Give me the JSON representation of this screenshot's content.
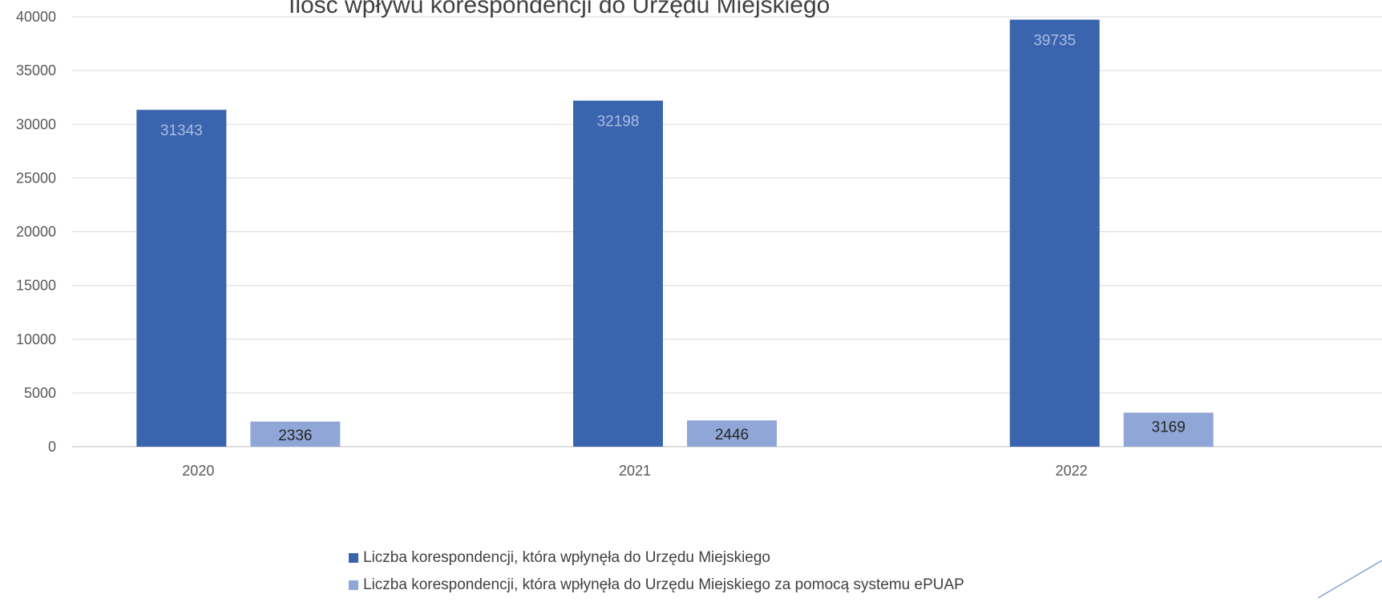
{
  "title": "Ilość wpływu korespondencji do Urzędu Miejskiego",
  "chart_data": {
    "type": "bar",
    "categories": [
      "2020",
      "2021",
      "2022"
    ],
    "series": [
      {
        "name": "Liczba korespondencji, która wpłynęła do Urzędu Miejskiego",
        "values": [
          31343,
          32198,
          39735
        ],
        "color": "#3B64AE",
        "label_color": "#A9BCE2"
      },
      {
        "name": "Liczba korespondencji, która wpłynęła do Urzędu Miejskiego za pomocą systemu ePUAP",
        "values": [
          2336,
          2446,
          3169
        ],
        "color": "#8FA6D6",
        "label_color": "#262626"
      }
    ],
    "ylim": [
      0,
      40000
    ],
    "yticks": [
      0,
      5000,
      10000,
      15000,
      20000,
      25000,
      30000,
      35000,
      40000
    ],
    "grid": true,
    "legend_position": "bottom"
  }
}
